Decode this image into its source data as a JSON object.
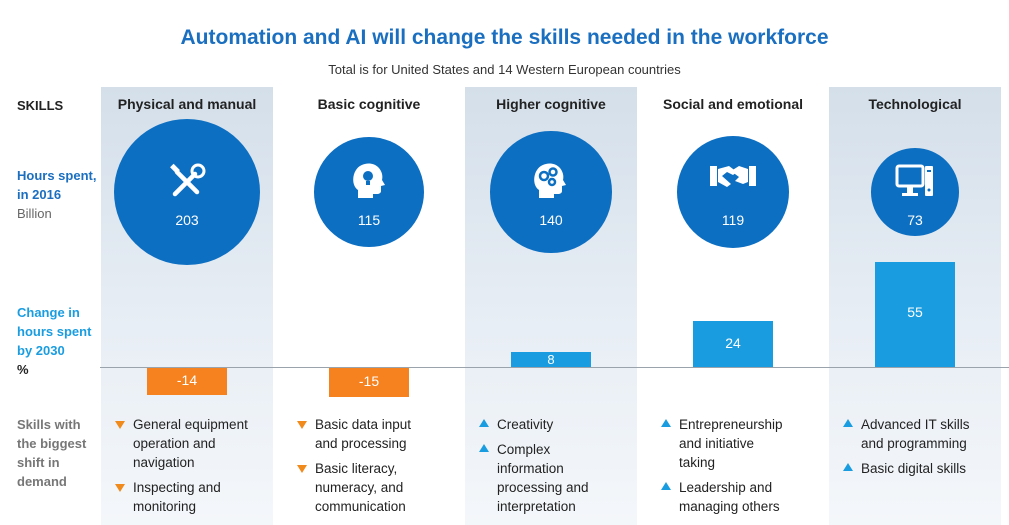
{
  "title": "Automation and AI will change the skills needed in the workforce",
  "subtitle": "Total is for United States and 14 Western European countries",
  "row_labels": {
    "skills": "SKILLS",
    "hours_line1": "Hours spent,",
    "hours_line2": "in 2016",
    "hours_unit": "Billion",
    "change_line1": "Change in",
    "change_line2": "hours spent",
    "change_line3": "by 2030",
    "change_unit": "%",
    "shift_line1": "Skills with",
    "shift_line2": "the biggest",
    "shift_line3": "shift in",
    "shift_line4": "demand"
  },
  "colors": {
    "title": "#1a6fc0",
    "circle": "#0d6fc2",
    "positive_bar": "#1a9de0",
    "negative_bar": "#f5821f",
    "band": "#dde6ef"
  },
  "chart_data": {
    "type": "bar",
    "categories": [
      "Physical and manual",
      "Basic cognitive",
      "Higher cognitive",
      "Social and emotional",
      "Technological"
    ],
    "hours_2016": [
      203,
      115,
      140,
      119,
      73
    ],
    "hours_2016_labels": [
      "203",
      "115",
      "140",
      "119",
      "73"
    ],
    "change_2030": [
      -14,
      -15,
      8,
      24,
      55
    ],
    "change_2030_labels": [
      "-14",
      "-15",
      "8",
      "24",
      "55"
    ],
    "icons": [
      "tools-icon",
      "head-lightbulb-icon",
      "head-gears-icon",
      "handshake-icon",
      "computer-icon"
    ]
  },
  "skills_shift": [
    {
      "items": [
        {
          "dir": "down",
          "text": "General equipment operation and navigation"
        },
        {
          "dir": "down",
          "text": "Inspecting and monitoring"
        }
      ]
    },
    {
      "items": [
        {
          "dir": "down",
          "text": "Basic data input and processing"
        },
        {
          "dir": "down",
          "text": "Basic literacy, numeracy, and communication"
        }
      ]
    },
    {
      "items": [
        {
          "dir": "up",
          "text": "Creativity"
        },
        {
          "dir": "up",
          "text": "Complex information processing and interpretation"
        }
      ]
    },
    {
      "items": [
        {
          "dir": "up",
          "text": "Entrepreneurship and initiative taking"
        },
        {
          "dir": "up",
          "text": "Leadership and managing others"
        }
      ]
    },
    {
      "items": [
        {
          "dir": "up",
          "text": "Advanced IT skills and programming"
        },
        {
          "dir": "up",
          "text": "Basic digital skills"
        }
      ]
    }
  ]
}
